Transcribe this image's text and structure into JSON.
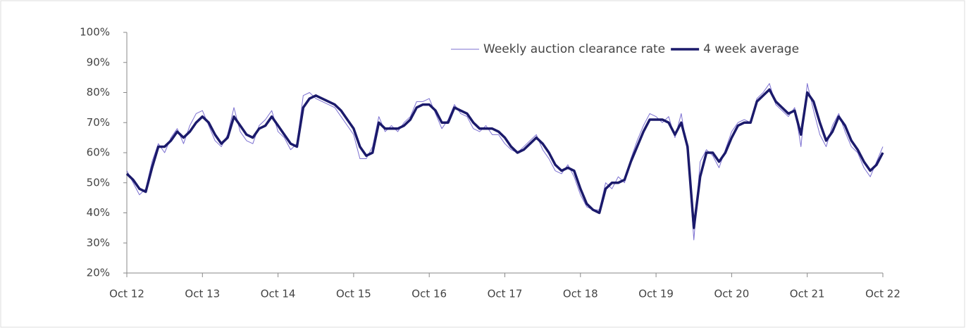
{
  "chart_data": {
    "type": "line",
    "categories": [
      "Oct 12",
      null,
      null,
      null,
      null,
      null,
      null,
      null,
      null,
      null,
      null,
      null,
      "Oct 13",
      null,
      null,
      null,
      null,
      null,
      null,
      null,
      null,
      null,
      null,
      null,
      "Oct 14",
      null,
      null,
      null,
      null,
      null,
      null,
      null,
      null,
      null,
      null,
      null,
      "Oct 15",
      null,
      null,
      null,
      null,
      null,
      null,
      null,
      null,
      null,
      null,
      null,
      "Oct 16",
      null,
      null,
      null,
      null,
      null,
      null,
      null,
      null,
      null,
      null,
      null,
      "Oct 17",
      null,
      null,
      null,
      null,
      null,
      null,
      null,
      null,
      null,
      null,
      null,
      "Oct 18",
      null,
      null,
      null,
      null,
      null,
      null,
      null,
      null,
      null,
      null,
      null,
      "Oct 19",
      null,
      null,
      null,
      null,
      null,
      null,
      null,
      null,
      null,
      null,
      null,
      "Oct 20",
      null,
      null,
      null,
      null,
      null,
      null,
      null,
      null,
      null,
      null,
      null,
      "Oct 21",
      null,
      null,
      null,
      null,
      null,
      null,
      null,
      null,
      null,
      null,
      null,
      "Oct 22"
    ],
    "series": [
      {
        "name": "Weekly auction clearance rate",
        "color": "#7b6fd0",
        "width": 1,
        "values": [
          54,
          50,
          46,
          48,
          57,
          63,
          60,
          65,
          68,
          63,
          69,
          73,
          74,
          69,
          64,
          62,
          66,
          75,
          67,
          64,
          63,
          69,
          71,
          74,
          67,
          65,
          61,
          63,
          79,
          80,
          78,
          77,
          76,
          75,
          72,
          69,
          66,
          58,
          58,
          62,
          72,
          67,
          69,
          67,
          70,
          72,
          77,
          77,
          78,
          73,
          68,
          71,
          76,
          73,
          72,
          68,
          67,
          69,
          66,
          66,
          63,
          61,
          60,
          62,
          64,
          66,
          61,
          58,
          54,
          53,
          56,
          52,
          46,
          42,
          41,
          41,
          50,
          48,
          52,
          50,
          58,
          64,
          69,
          73,
          72,
          70,
          72,
          65,
          73,
          60,
          31,
          57,
          61,
          59,
          55,
          61,
          67,
          70,
          71,
          70,
          78,
          80,
          83,
          76,
          74,
          72,
          75,
          62,
          83,
          74,
          66,
          62,
          69,
          73,
          67,
          62,
          60,
          55,
          52,
          57,
          62
        ]
      },
      {
        "name": "4 week average",
        "color": "#1b1a6b",
        "width": 3.5,
        "values": [
          53,
          51,
          48,
          47,
          55,
          62,
          62,
          64,
          67,
          65,
          67,
          70,
          72,
          70,
          66,
          63,
          65,
          72,
          69,
          66,
          65,
          68,
          69,
          72,
          69,
          66,
          63,
          62,
          75,
          78,
          79,
          78,
          77,
          76,
          74,
          71,
          68,
          62,
          59,
          60,
          70,
          68,
          68,
          68,
          69,
          71,
          75,
          76,
          76,
          74,
          70,
          70,
          75,
          74,
          73,
          70,
          68,
          68,
          68,
          67,
          65,
          62,
          60,
          61,
          63,
          65,
          63,
          60,
          56,
          54,
          55,
          54,
          48,
          43,
          41,
          40,
          48,
          50,
          50,
          51,
          57,
          62,
          67,
          71,
          71,
          71,
          70,
          66,
          70,
          62,
          35,
          52,
          60,
          60,
          57,
          60,
          65,
          69,
          70,
          70,
          77,
          79,
          81,
          77,
          75,
          73,
          74,
          66,
          80,
          77,
          70,
          64,
          67,
          72,
          69,
          64,
          61,
          57,
          54,
          56,
          60
        ]
      }
    ],
    "ylim": [
      20,
      100
    ],
    "yticks": [
      {
        "value": 20,
        "label": "20%"
      },
      {
        "value": 30,
        "label": "30%"
      },
      {
        "value": 40,
        "label": "40%"
      },
      {
        "value": 50,
        "label": "50%"
      },
      {
        "value": 60,
        "label": "60%"
      },
      {
        "value": 70,
        "label": "70%"
      },
      {
        "value": 80,
        "label": "80%"
      },
      {
        "value": 90,
        "label": "90%"
      },
      {
        "value": 100,
        "label": "100%"
      }
    ],
    "grid": false,
    "legend": "upper right"
  }
}
